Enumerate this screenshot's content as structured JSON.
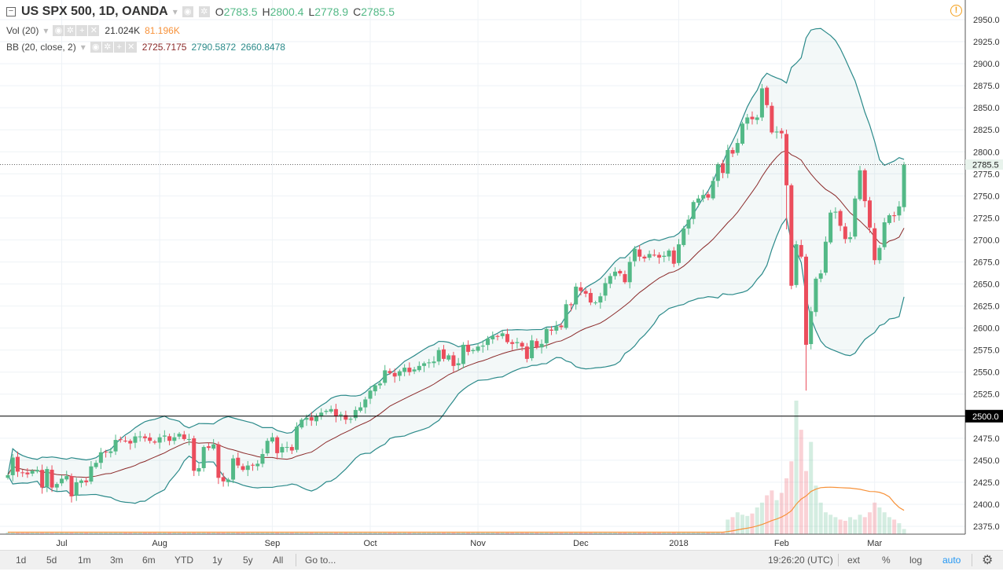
{
  "header": {
    "symbol_title": "US SPX 500, 1D, OANDA",
    "ohlc": {
      "o_label": "O",
      "o": "2783.5",
      "h_label": "H",
      "h": "2800.4",
      "l_label": "L",
      "l": "2778.9",
      "c_label": "C",
      "c": "2785.5"
    },
    "vol": {
      "label": "Vol (20)",
      "value": "21.024K",
      "ma": "81.196K"
    },
    "bb": {
      "label": "BB (20, close, 2)",
      "basis": "2725.7175",
      "upper": "2790.5872",
      "lower": "2660.8478"
    }
  },
  "toolbar": {
    "ranges": [
      "1d",
      "5d",
      "1m",
      "3m",
      "6m",
      "YTD",
      "1y",
      "5y",
      "All"
    ],
    "goto": "Go to...",
    "clock": "19:26:20 (UTC)",
    "ext": "ext",
    "percent": "%",
    "log": "log",
    "auto": "auto"
  },
  "colors": {
    "up": "#53b987",
    "down": "#eb4d5c",
    "bb_band": "#2b8a8a",
    "bb_basis": "#8b2a2a",
    "vol_ma": "#f7923a",
    "alert": "#f4a01c"
  },
  "icons": {
    "alert": "alert-circle-icon",
    "settings": "gear-icon"
  },
  "chart_data": {
    "type": "candlestick",
    "title": "US SPX 500, 1D, OANDA",
    "ylim": [
      2362,
      2962
    ],
    "y_ticks": [
      2375,
      2400,
      2425,
      2450,
      2475,
      2500,
      2525,
      2550,
      2575,
      2600,
      2625,
      2650,
      2675,
      2700,
      2725,
      2750,
      2775,
      2800,
      2825,
      2850,
      2875,
      2900,
      2925,
      2950
    ],
    "x_ticks": [
      {
        "label": "Jul",
        "index": 11
      },
      {
        "label": "Aug",
        "index": 31
      },
      {
        "label": "Sep",
        "index": 54
      },
      {
        "label": "Oct",
        "index": 74
      },
      {
        "label": "Nov",
        "index": 96
      },
      {
        "label": "Dec",
        "index": 117
      },
      {
        "label": "2018",
        "index": 137
      },
      {
        "label": "Feb",
        "index": 158
      },
      {
        "label": "Mar",
        "index": 177
      }
    ],
    "horizontal_line": {
      "value": 2500,
      "label": "2500.0"
    },
    "last_price": {
      "value": 2785.5,
      "label": "2785.5"
    },
    "close": [
      2433,
      2453,
      2437,
      2436,
      2434,
      2438,
      2439,
      2419,
      2440,
      2419,
      2423,
      2429,
      2432,
      2409,
      2425,
      2427,
      2425,
      2443,
      2447,
      2459,
      2459,
      2460,
      2473,
      2473,
      2472,
      2469,
      2477,
      2477,
      2475,
      2472,
      2470,
      2476,
      2478,
      2472,
      2476,
      2480,
      2474,
      2474,
      2438,
      2441,
      2465,
      2464,
      2468,
      2430,
      2426,
      2428,
      2452,
      2444,
      2439,
      2444,
      2444,
      2446,
      2457,
      2472,
      2476,
      2458,
      2465,
      2465,
      2461,
      2488,
      2496,
      2498,
      2495,
      2500,
      2504,
      2506,
      2508,
      2500,
      2502,
      2496,
      2497,
      2507,
      2510,
      2519,
      2529,
      2535,
      2537,
      2552,
      2549,
      2545,
      2551,
      2555,
      2550,
      2553,
      2557,
      2560,
      2561,
      2562,
      2575,
      2565,
      2569,
      2557,
      2560,
      2581,
      2573,
      2575,
      2579,
      2580,
      2588,
      2591,
      2590,
      2594,
      2584,
      2582,
      2584,
      2579,
      2565,
      2586,
      2578,
      2582,
      2599,
      2597,
      2602,
      2601,
      2627,
      2626,
      2647,
      2642,
      2639,
      2629,
      2629,
      2636,
      2651,
      2659,
      2664,
      2662,
      2652,
      2675,
      2690,
      2681,
      2679,
      2684,
      2683,
      2680,
      2682,
      2688,
      2673,
      2695,
      2713,
      2723,
      2743,
      2747,
      2751,
      2748,
      2767,
      2786,
      2776,
      2802,
      2798,
      2810,
      2832,
      2839,
      2837,
      2839,
      2872,
      2853,
      2822,
      2823,
      2821,
      2762,
      2648,
      2695,
      2681,
      2581,
      2619,
      2656,
      2662,
      2698,
      2731,
      2732,
      2716,
      2701,
      2703,
      2747,
      2779,
      2744,
      2714,
      2677,
      2691,
      2720,
      2728,
      2727,
      2738,
      2785.5
    ],
    "volume_k_recent": [
      60,
      70,
      90,
      80,
      75,
      85,
      110,
      130,
      160,
      180,
      140,
      170,
      230,
      300,
      550,
      430,
      260,
      380,
      200,
      130,
      90,
      80,
      70,
      60,
      55,
      70,
      60,
      80,
      70,
      90,
      130,
      110,
      90,
      70,
      60,
      45,
      21
    ],
    "volume_baseline_k": 8,
    "indicators": {
      "bb": {
        "period": 20,
        "mult": 2
      },
      "vol_ma_period": 20
    }
  }
}
